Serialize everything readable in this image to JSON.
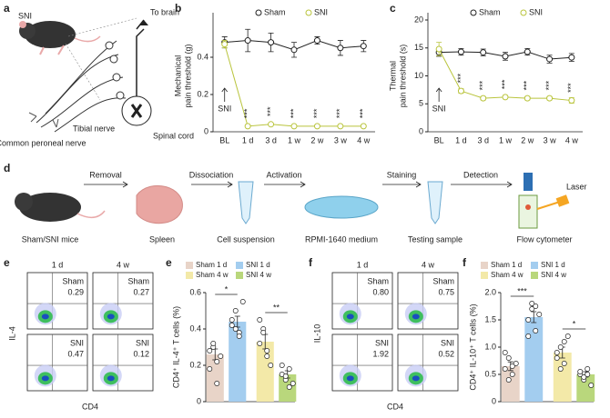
{
  "panel_a": {
    "letter": "a",
    "labels": [
      "SNI",
      "To brain",
      "Spinal cord",
      "Common peroneal nerve",
      "Tibial nerve"
    ]
  },
  "panel_d": {
    "letter": "d",
    "steps": [
      "Sham/SNI mice",
      "Spleen",
      "Cell suspension",
      "RPMI-1640 medium",
      "Testing sample",
      "Flow cytometer"
    ],
    "transitions": [
      "Removal",
      "Dissociation",
      "Activation",
      "Staining",
      "Detection"
    ],
    "laser": "Laser"
  },
  "flow": [
    {
      "letter": "e",
      "columns": [
        "1 d",
        "4 w"
      ],
      "rows": [
        "Sham",
        "SNI"
      ],
      "values": [
        [
          "0.29",
          "0.27"
        ],
        [
          "0.47",
          "0.12"
        ]
      ],
      "ylabel": "IL-4",
      "xlabel": "CD4"
    },
    {
      "letter": "f",
      "columns": [
        "1 d",
        "4 w"
      ],
      "rows": [
        "Sham",
        "SNI"
      ],
      "values": [
        [
          "0.80",
          "0.75"
        ],
        [
          "1.92",
          "0.52"
        ]
      ],
      "ylabel": "IL-10",
      "xlabel": "CD4"
    }
  ],
  "chart_data": [
    {
      "type": "line",
      "letter": "b",
      "ylabel": [
        "Mechanical",
        "pain threshold (g)"
      ],
      "categories": [
        "BL",
        "1 d",
        "3 d",
        "1 w",
        "2 w",
        "3 w",
        "4 w"
      ],
      "ylim": [
        0,
        0.6
      ],
      "yticks": [
        0,
        0.2,
        0.4
      ],
      "annotation": "SNI",
      "legend": "top",
      "series": [
        {
          "name": "Sham",
          "color": "#222222",
          "values": [
            0.48,
            0.49,
            0.48,
            0.44,
            0.49,
            0.45,
            0.46
          ],
          "errors": [
            0.03,
            0.06,
            0.05,
            0.04,
            0.02,
            0.04,
            0.03
          ]
        },
        {
          "name": "SNI",
          "color": "#b9c43c",
          "values": [
            0.47,
            0.03,
            0.04,
            0.03,
            0.03,
            0.03,
            0.03
          ],
          "errors": [
            0.02,
            0.005,
            0.005,
            0.005,
            0.005,
            0.005,
            0.005
          ],
          "significance": [
            null,
            "***",
            "***",
            "***",
            "***",
            "***",
            "***"
          ]
        }
      ]
    },
    {
      "type": "line",
      "letter": "c",
      "ylabel": [
        "Thermal",
        "pain threshold (s)"
      ],
      "categories": [
        "BL",
        "1 d",
        "3 d",
        "1 w",
        "2 w",
        "3 w",
        "4 w"
      ],
      "ylim": [
        0,
        20
      ],
      "yticks": [
        0,
        5,
        10,
        15,
        20
      ],
      "annotation": "SNI",
      "legend": "top",
      "series": [
        {
          "name": "Sham",
          "color": "#222222",
          "values": [
            14.2,
            14.3,
            14.2,
            13.5,
            14.3,
            13.0,
            13.3
          ],
          "errors": [
            0.7,
            0.6,
            0.6,
            0.7,
            0.6,
            0.7,
            0.7
          ]
        },
        {
          "name": "SNI",
          "color": "#b9c43c",
          "values": [
            14.8,
            7.3,
            6.0,
            6.2,
            6.0,
            6.0,
            5.6
          ],
          "errors": [
            1.2,
            0.4,
            0.3,
            0.3,
            0.3,
            0.3,
            0.5
          ],
          "significance": [
            null,
            "***",
            "***",
            "***",
            "***",
            "***",
            "***"
          ]
        }
      ]
    },
    {
      "type": "bar",
      "letter": "e",
      "ylabel": "CD4⁺ IL-4⁺ T cells (%)",
      "categories": [
        "Sham 1 d",
        "SNI 1 d",
        "Sham 4 w",
        "SNI 4 w"
      ],
      "colors": [
        "#e8d4c8",
        "#a3cdef",
        "#f3e9a8",
        "#b9d77c"
      ],
      "values": [
        0.26,
        0.44,
        0.33,
        0.15
      ],
      "errors": [
        0.03,
        0.03,
        0.04,
        0.02
      ],
      "points": [
        [
          0.28,
          0.3,
          0.22,
          0.25,
          0.18,
          0.32,
          0.1
        ],
        [
          0.45,
          0.5,
          0.38,
          0.55,
          0.42,
          0.4,
          0.36
        ],
        [
          0.32,
          0.4,
          0.28,
          0.2,
          0.45,
          0.38,
          0.25
        ],
        [
          0.15,
          0.12,
          0.18,
          0.1,
          0.2,
          0.14,
          0.08
        ]
      ],
      "ylim": [
        0,
        0.6
      ],
      "yticks": [
        0,
        0.2,
        0.4,
        0.6
      ],
      "comparisons": [
        {
          "from": "Sham 1 d",
          "to": "SNI 1 d",
          "label": "*"
        },
        {
          "from": "Sham 4 w",
          "to": "SNI 4 w",
          "label": "**"
        }
      ]
    },
    {
      "type": "bar",
      "letter": "f",
      "ylabel": "CD4⁺ IL-10⁺ T cells (%)",
      "categories": [
        "Sham 1 d",
        "SNI 1 d",
        "Sham 4 w",
        "SNI 4 w"
      ],
      "colors": [
        "#e8d4c8",
        "#a3cdef",
        "#f3e9a8",
        "#b9d77c"
      ],
      "values": [
        0.65,
        1.55,
        0.9,
        0.5
      ],
      "errors": [
        0.08,
        0.1,
        0.1,
        0.05
      ],
      "points": [
        [
          0.6,
          0.8,
          0.5,
          0.7,
          0.9,
          0.4,
          0.65
        ],
        [
          1.5,
          1.8,
          1.3,
          1.6,
          1.2,
          1.7,
          1.75
        ],
        [
          0.9,
          1.0,
          0.7,
          1.2,
          0.8,
          0.6,
          1.1
        ],
        [
          0.5,
          0.4,
          0.6,
          0.3,
          0.55,
          0.45,
          0.5
        ]
      ],
      "ylim": [
        0,
        2
      ],
      "yticks": [
        0,
        0.5,
        {
          "value": 1,
          "label": "1.0"
        },
        1.5,
        {
          "value": 2,
          "label": "2.0"
        }
      ],
      "comparisons": [
        {
          "from": "Sham 1 d",
          "to": "SNI 1 d",
          "label": "***"
        },
        {
          "from": "Sham 4 w",
          "to": "SNI 4 w",
          "label": "*"
        }
      ]
    }
  ]
}
